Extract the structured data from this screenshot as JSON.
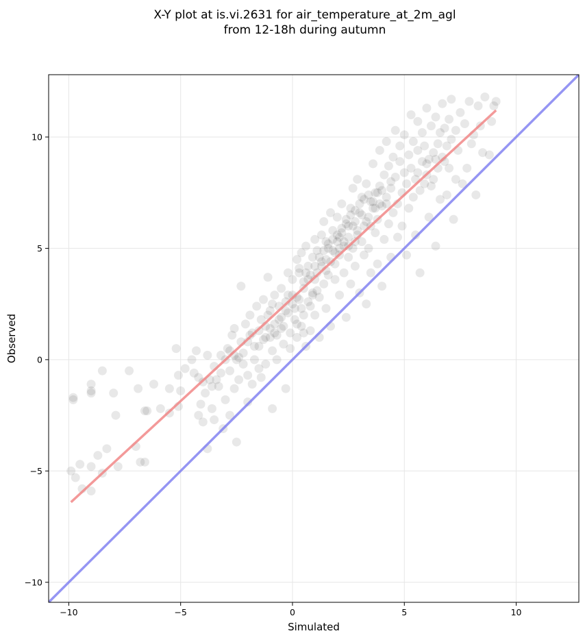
{
  "chart_data": {
    "type": "scatter",
    "title_line1": "X-Y plot at is.vi.2631 for air_temperature_at_2m_agl",
    "title_line2": "from 12-18h during autumn",
    "xlabel": "Simulated",
    "ylabel": "Observed",
    "xlim": [
      -10.9,
      12.8
    ],
    "ylim": [
      -10.9,
      12.8
    ],
    "xticks": [
      -10,
      -5,
      0,
      5,
      10
    ],
    "yticks": [
      -10,
      -5,
      0,
      5,
      10
    ],
    "xtick_labels": [
      "−10",
      "−5",
      "0",
      "5",
      "10"
    ],
    "ytick_labels": [
      "−10",
      "−5",
      "0",
      "5",
      "10"
    ],
    "grid": true,
    "point_color": "#000000",
    "regression_color": "#f08080",
    "identity_color": "#7b7bf0",
    "regression_line": {
      "x": [
        -9.9,
        9.1
      ],
      "y": [
        -6.4,
        11.2
      ]
    },
    "identity_line": {
      "x": [
        -10.9,
        12.8
      ],
      "y": [
        -10.9,
        12.8
      ]
    },
    "points": [
      [
        -9.8,
        -1.7
      ],
      [
        -9.8,
        -1.8
      ],
      [
        -9.0,
        -1.1
      ],
      [
        -9.0,
        -1.4
      ],
      [
        -9.0,
        -1.5
      ],
      [
        -8.5,
        -0.5
      ],
      [
        -8.0,
        -1.5
      ],
      [
        -7.9,
        -2.5
      ],
      [
        -7.3,
        -0.5
      ],
      [
        -6.9,
        -1.3
      ],
      [
        -6.6,
        -2.3
      ],
      [
        -6.5,
        -2.3
      ],
      [
        -6.2,
        -1.1
      ],
      [
        -5.9,
        -2.2
      ],
      [
        -5.5,
        -1.3
      ],
      [
        -5.5,
        -2.4
      ],
      [
        -5.1,
        -2.1
      ],
      [
        -9.9,
        -5.0
      ],
      [
        -9.7,
        -5.3
      ],
      [
        -9.5,
        -4.7
      ],
      [
        -9.4,
        -5.8
      ],
      [
        -9.0,
        -4.8
      ],
      [
        -9.0,
        -5.9
      ],
      [
        -8.7,
        -4.3
      ],
      [
        -8.5,
        -5.1
      ],
      [
        -8.3,
        -4.0
      ],
      [
        -7.8,
        -4.8
      ],
      [
        -7.0,
        -3.9
      ],
      [
        -6.8,
        -4.6
      ],
      [
        -6.6,
        -4.6
      ],
      [
        -5.2,
        0.5
      ],
      [
        -5.1,
        -0.7
      ],
      [
        -5.0,
        -1.4
      ],
      [
        -4.8,
        -0.4
      ],
      [
        -4.5,
        0.0
      ],
      [
        -4.4,
        -0.6
      ],
      [
        -4.3,
        0.4
      ],
      [
        -4.2,
        -2.5
      ],
      [
        -4.1,
        -2.0
      ],
      [
        -4.0,
        -2.8
      ],
      [
        -3.9,
        -1.5
      ],
      [
        -3.8,
        -4.0
      ],
      [
        -3.7,
        -0.9
      ],
      [
        -3.6,
        -2.2
      ],
      [
        -3.5,
        -0.3
      ],
      [
        -3.5,
        -2.7
      ],
      [
        -3.3,
        -1.2
      ],
      [
        -3.2,
        0.2
      ],
      [
        -3.1,
        -3.1
      ],
      [
        -3.0,
        -1.8
      ],
      [
        -2.9,
        0.5
      ],
      [
        -2.8,
        -0.5
      ],
      [
        -2.8,
        -2.5
      ],
      [
        -2.7,
        1.1
      ],
      [
        -2.6,
        -1.3
      ],
      [
        -2.5,
        -3.7
      ],
      [
        -2.5,
        0.0
      ],
      [
        -2.4,
        -0.9
      ],
      [
        -2.3,
        3.3
      ],
      [
        -2.2,
        0.3
      ],
      [
        -2.1,
        1.6
      ],
      [
        -2.0,
        -0.7
      ],
      [
        -2.0,
        0.8
      ],
      [
        -1.9,
        2.0
      ],
      [
        -1.8,
        -1.1
      ],
      [
        -1.8,
        1.2
      ],
      [
        -1.7,
        0.0
      ],
      [
        -1.6,
        2.4
      ],
      [
        -1.5,
        -0.4
      ],
      [
        -1.5,
        0.6
      ],
      [
        -1.4,
        1.8
      ],
      [
        -1.3,
        2.7
      ],
      [
        -1.2,
        1.0
      ],
      [
        -1.2,
        -0.2
      ],
      [
        -1.1,
        3.7
      ],
      [
        -1.0,
        2.2
      ],
      [
        -1.0,
        1.4
      ],
      [
        -0.9,
        0.4
      ],
      [
        -0.9,
        -2.2
      ],
      [
        -0.8,
        1.6
      ],
      [
        -0.8,
        2.9
      ],
      [
        -0.7,
        1.1
      ],
      [
        -0.7,
        0.0
      ],
      [
        -0.6,
        2.4
      ],
      [
        -0.5,
        1.9
      ],
      [
        -0.5,
        3.2
      ],
      [
        -0.4,
        0.7
      ],
      [
        -0.4,
        1.5
      ],
      [
        -0.3,
        2.6
      ],
      [
        -0.3,
        -1.3
      ],
      [
        -0.2,
        3.9
      ],
      [
        -0.2,
        2.1
      ],
      [
        -0.1,
        1.2
      ],
      [
        -0.1,
        0.5
      ],
      [
        0.0,
        2.9
      ],
      [
        0.0,
        3.6
      ],
      [
        0.1,
        1.8
      ],
      [
        0.1,
        2.3
      ],
      [
        0.2,
        4.5
      ],
      [
        0.2,
        1.0
      ],
      [
        0.3,
        2.7
      ],
      [
        0.3,
        3.9
      ],
      [
        0.4,
        1.5
      ],
      [
        0.4,
        4.8
      ],
      [
        0.5,
        3.2
      ],
      [
        0.5,
        2.0
      ],
      [
        0.6,
        5.1
      ],
      [
        0.6,
        0.6
      ],
      [
        0.7,
        3.6
      ],
      [
        0.7,
        4.2
      ],
      [
        0.8,
        2.4
      ],
      [
        0.8,
        1.3
      ],
      [
        0.9,
        4.6
      ],
      [
        0.9,
        3.0
      ],
      [
        1.0,
        5.4
      ],
      [
        1.0,
        2.0
      ],
      [
        1.1,
        3.9
      ],
      [
        1.1,
        4.9
      ],
      [
        1.2,
        2.8
      ],
      [
        1.2,
        1.0
      ],
      [
        1.3,
        4.2
      ],
      [
        1.3,
        5.6
      ],
      [
        1.4,
        3.4
      ],
      [
        1.4,
        6.2
      ],
      [
        1.5,
        4.5
      ],
      [
        1.5,
        2.3
      ],
      [
        1.6,
        5.0
      ],
      [
        1.6,
        3.8
      ],
      [
        1.7,
        6.6
      ],
      [
        1.7,
        1.5
      ],
      [
        1.8,
        4.9
      ],
      [
        1.8,
        5.8
      ],
      [
        1.9,
        3.6
      ],
      [
        1.9,
        4.3
      ],
      [
        2.0,
        5.3
      ],
      [
        2.0,
        6.4
      ],
      [
        2.1,
        2.9
      ],
      [
        2.1,
        4.7
      ],
      [
        2.2,
        5.7
      ],
      [
        2.2,
        7.0
      ],
      [
        2.3,
        3.9
      ],
      [
        2.3,
        5.1
      ],
      [
        2.4,
        6.1
      ],
      [
        2.4,
        1.9
      ],
      [
        2.5,
        4.6
      ],
      [
        2.5,
        5.5
      ],
      [
        2.6,
        6.8
      ],
      [
        2.6,
        3.4
      ],
      [
        2.7,
        5.0
      ],
      [
        2.7,
        7.7
      ],
      [
        2.8,
        6.2
      ],
      [
        2.8,
        4.2
      ],
      [
        2.9,
        5.6
      ],
      [
        2.9,
        8.1
      ],
      [
        3.0,
        6.6
      ],
      [
        3.0,
        3.0
      ],
      [
        3.1,
        5.3
      ],
      [
        3.1,
        7.3
      ],
      [
        3.2,
        4.7
      ],
      [
        3.2,
        6.0
      ],
      [
        3.3,
        7.9
      ],
      [
        3.3,
        2.5
      ],
      [
        3.4,
        6.4
      ],
      [
        3.4,
        5.0
      ],
      [
        3.5,
        7.1
      ],
      [
        3.5,
        3.9
      ],
      [
        3.6,
        6.8
      ],
      [
        3.6,
        8.8
      ],
      [
        3.7,
        5.7
      ],
      [
        3.7,
        7.5
      ],
      [
        3.8,
        4.3
      ],
      [
        3.8,
        6.3
      ],
      [
        3.9,
        7.8
      ],
      [
        3.9,
        9.4
      ],
      [
        4.0,
        6.9
      ],
      [
        4.0,
        3.3
      ],
      [
        4.1,
        8.3
      ],
      [
        4.1,
        5.4
      ],
      [
        4.2,
        7.3
      ],
      [
        4.2,
        9.8
      ],
      [
        4.3,
        6.1
      ],
      [
        4.3,
        8.7
      ],
      [
        4.4,
        4.6
      ],
      [
        4.4,
        7.7
      ],
      [
        4.5,
        9.1
      ],
      [
        4.5,
        6.6
      ],
      [
        4.6,
        8.2
      ],
      [
        4.6,
        10.3
      ],
      [
        4.7,
        7.0
      ],
      [
        4.7,
        5.5
      ],
      [
        4.8,
        8.9
      ],
      [
        4.8,
        9.6
      ],
      [
        4.9,
        7.5
      ],
      [
        4.9,
        6.0
      ],
      [
        5.0,
        8.4
      ],
      [
        5.0,
        10.1
      ],
      [
        5.1,
        7.9
      ],
      [
        5.1,
        4.7
      ],
      [
        5.2,
        9.2
      ],
      [
        5.2,
        6.8
      ],
      [
        5.3,
        8.6
      ],
      [
        5.3,
        11.0
      ],
      [
        5.4,
        7.3
      ],
      [
        5.4,
        9.8
      ],
      [
        5.5,
        8.1
      ],
      [
        5.5,
        5.6
      ],
      [
        5.6,
        9.4
      ],
      [
        5.6,
        10.7
      ],
      [
        5.7,
        7.6
      ],
      [
        5.7,
        3.9
      ],
      [
        5.8,
        8.9
      ],
      [
        5.8,
        10.2
      ],
      [
        5.9,
        7.9
      ],
      [
        5.9,
        9.6
      ],
      [
        6.0,
        8.3
      ],
      [
        6.0,
        11.3
      ],
      [
        6.1,
        9.0
      ],
      [
        6.1,
        6.4
      ],
      [
        6.2,
        10.5
      ],
      [
        6.2,
        7.8
      ],
      [
        6.3,
        9.3
      ],
      [
        6.3,
        8.1
      ],
      [
        6.4,
        10.9
      ],
      [
        6.4,
        5.1
      ],
      [
        6.5,
        9.7
      ],
      [
        6.5,
        8.6
      ],
      [
        6.6,
        10.2
      ],
      [
        6.6,
        7.2
      ],
      [
        6.7,
        9.1
      ],
      [
        6.7,
        11.5
      ],
      [
        6.8,
        8.9
      ],
      [
        6.8,
        10.4
      ],
      [
        6.9,
        9.6
      ],
      [
        6.9,
        7.4
      ],
      [
        7.0,
        10.8
      ],
      [
        7.0,
        8.6
      ],
      [
        7.1,
        11.7
      ],
      [
        7.1,
        9.9
      ],
      [
        7.2,
        6.3
      ],
      [
        7.3,
        10.3
      ],
      [
        7.3,
        8.1
      ],
      [
        7.4,
        9.4
      ],
      [
        7.5,
        11.1
      ],
      [
        7.6,
        7.9
      ],
      [
        7.7,
        10.6
      ],
      [
        7.8,
        8.6
      ],
      [
        7.9,
        11.6
      ],
      [
        8.0,
        9.7
      ],
      [
        8.1,
        10.1
      ],
      [
        8.2,
        7.4
      ],
      [
        8.3,
        11.4
      ],
      [
        8.4,
        10.5
      ],
      [
        8.5,
        9.3
      ],
      [
        8.6,
        11.8
      ],
      [
        8.8,
        9.2
      ],
      [
        8.9,
        10.7
      ],
      [
        9.0,
        11.4
      ],
      [
        9.1,
        11.6
      ],
      [
        -2.4,
        0.1
      ],
      [
        -2.6,
        0.2
      ],
      [
        -2.2,
        -0.2
      ],
      [
        -1.0,
        1.0
      ],
      [
        -0.8,
        1.2
      ],
      [
        -1.2,
        1.5
      ],
      [
        -0.5,
        1.4
      ],
      [
        -0.3,
        2.2
      ],
      [
        0.0,
        2.5
      ],
      [
        0.2,
        2.8
      ],
      [
        0.5,
        3.5
      ],
      [
        0.8,
        3.8
      ],
      [
        1.0,
        4.2
      ],
      [
        1.2,
        4.6
      ],
      [
        1.4,
        4.9
      ],
      [
        1.6,
        5.2
      ],
      [
        1.8,
        5.4
      ],
      [
        2.0,
        5.6
      ],
      [
        2.2,
        5.9
      ],
      [
        2.4,
        6.3
      ],
      [
        2.6,
        6.5
      ],
      [
        2.8,
        6.7
      ],
      [
        3.0,
        7.0
      ],
      [
        3.2,
        7.2
      ],
      [
        3.4,
        7.4
      ],
      [
        3.6,
        7.1
      ],
      [
        3.8,
        7.5
      ],
      [
        4.0,
        7.6
      ],
      [
        3.3,
        6.2
      ],
      [
        3.5,
        6.0
      ],
      [
        2.9,
        5.8
      ],
      [
        2.1,
        5.0
      ],
      [
        1.9,
        4.8
      ],
      [
        1.1,
        3.1
      ],
      [
        0.9,
        2.9
      ],
      [
        0.7,
        2.6
      ],
      [
        0.4,
        2.3
      ],
      [
        -0.6,
        1.8
      ],
      [
        -1.5,
        1.3
      ],
      [
        -1.7,
        0.6
      ],
      [
        -2.8,
        0.4
      ],
      [
        -3.0,
        0.0
      ],
      [
        -3.2,
        -0.6
      ],
      [
        -3.4,
        -0.9
      ],
      [
        -3.6,
        -1.2
      ],
      [
        -1.3,
        0.9
      ],
      [
        -1.1,
        2.0
      ],
      [
        1.5,
        4.0
      ],
      [
        1.7,
        4.4
      ],
      [
        2.3,
        5.3
      ],
      [
        2.5,
        5.1
      ],
      [
        2.7,
        6.0
      ],
      [
        3.1,
        6.5
      ],
      [
        3.7,
        6.8
      ],
      [
        3.9,
        7.0
      ],
      [
        4.2,
        7.0
      ],
      [
        4.4,
        8.0
      ],
      [
        5.6,
        8.4
      ],
      [
        6.0,
        8.8
      ],
      [
        6.4,
        9.0
      ],
      [
        0.6,
        3.9
      ],
      [
        0.3,
        4.1
      ],
      [
        1.3,
        4.4
      ],
      [
        1.5,
        5.3
      ],
      [
        2.1,
        5.5
      ],
      [
        2.5,
        6.0
      ],
      [
        2.8,
        5.3
      ],
      [
        1.0,
        3.6
      ],
      [
        0.5,
        1.2
      ],
      [
        0.2,
        1.6
      ],
      [
        -0.2,
        2.9
      ],
      [
        -0.9,
        2.5
      ],
      [
        -1.9,
        1.1
      ],
      [
        -2.3,
        0.8
      ],
      [
        -2.6,
        1.4
      ],
      [
        -3.8,
        0.2
      ],
      [
        -4.2,
        -0.8
      ],
      [
        -4.0,
        -1.0
      ],
      [
        -2.0,
        -1.9
      ],
      [
        -1.4,
        -0.8
      ]
    ]
  }
}
